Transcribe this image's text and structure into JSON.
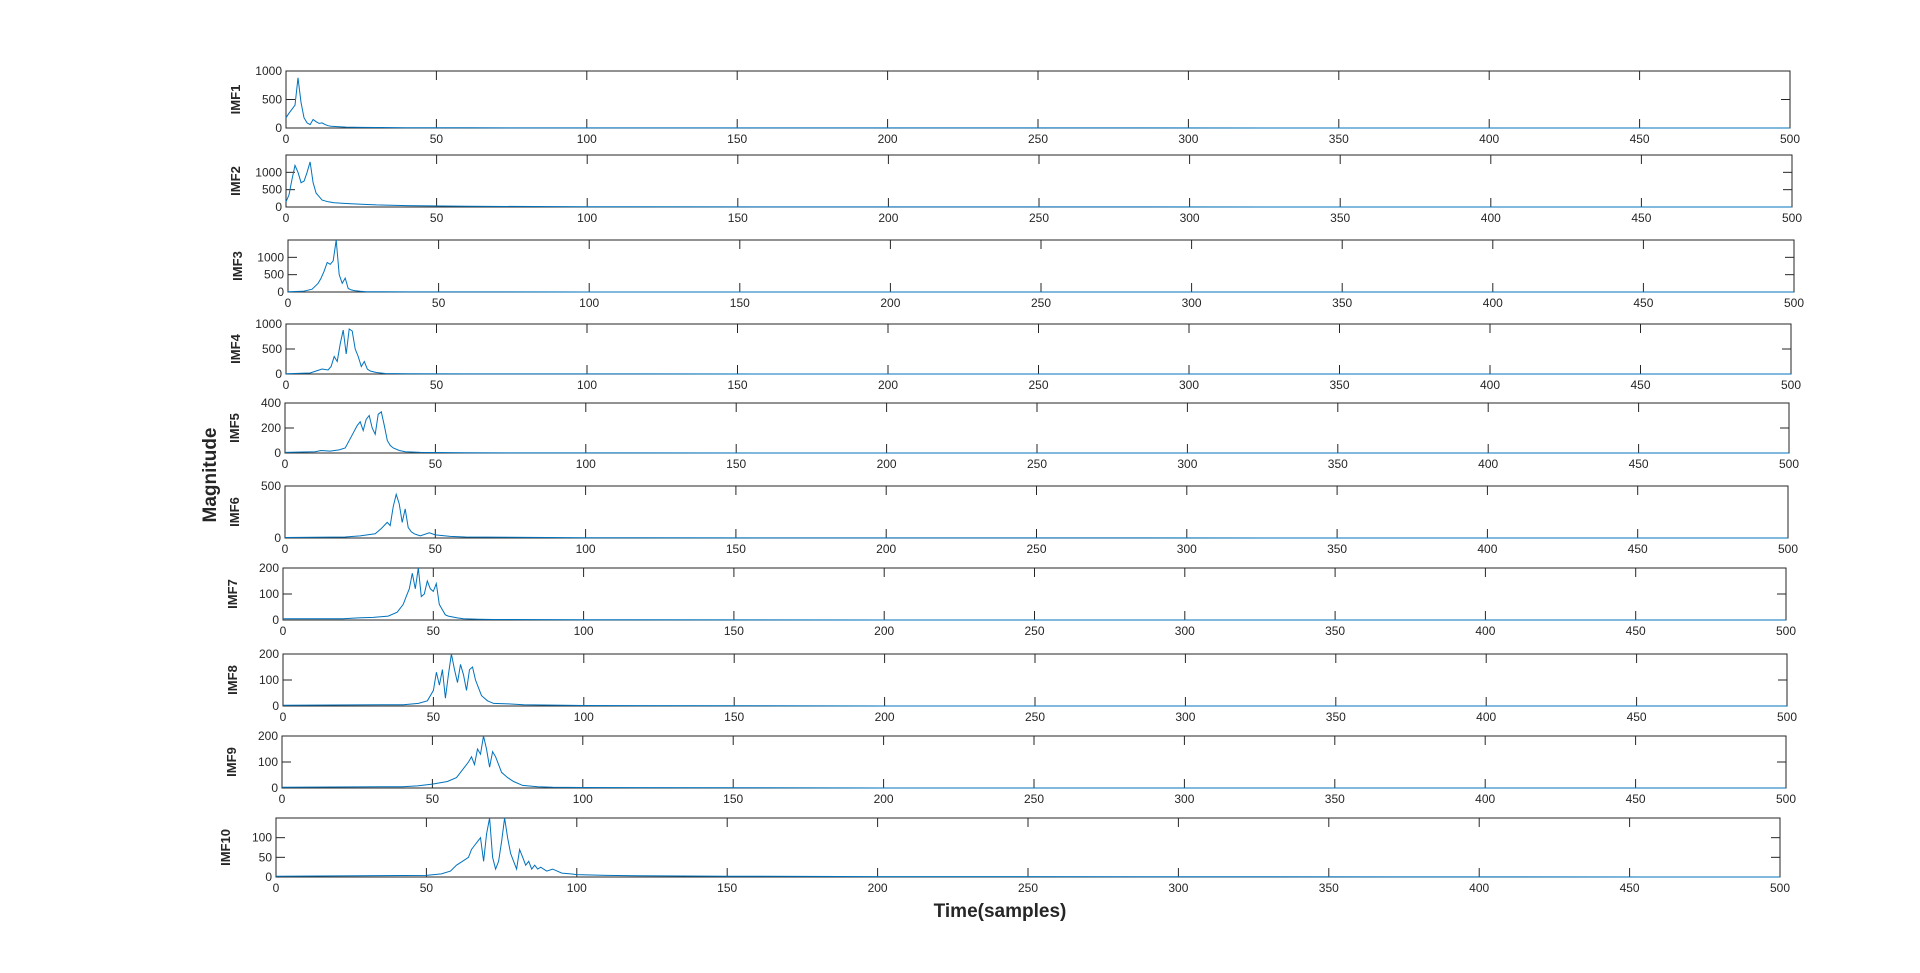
{
  "figure": {
    "ylabel": "Magnitude",
    "xlabel": "Time(samples)",
    "line_color": "#0072BD",
    "axes_color": "#262626"
  },
  "chart_data": [
    {
      "type": "line",
      "ylabel": "IMF1",
      "xlim": [
        0,
        500
      ],
      "ylim": [
        0,
        1000
      ],
      "xticks": [
        0,
        50,
        100,
        150,
        200,
        250,
        300,
        350,
        400,
        450,
        500
      ],
      "yticks": [
        0,
        500,
        1000
      ],
      "grid": false,
      "series": [
        {
          "x": [
            0,
            1,
            2,
            3,
            4,
            5,
            6,
            7,
            8,
            9,
            10,
            11,
            12,
            13,
            14,
            15,
            17,
            20,
            25,
            30,
            40,
            60,
            100,
            200,
            500
          ],
          "y": [
            180,
            260,
            330,
            400,
            880,
            450,
            180,
            90,
            60,
            150,
            110,
            80,
            90,
            60,
            40,
            30,
            25,
            15,
            10,
            8,
            5,
            3,
            2,
            1,
            0
          ]
        }
      ]
    },
    {
      "type": "line",
      "ylabel": "IMF2",
      "xlim": [
        0,
        500
      ],
      "ylim": [
        0,
        1500
      ],
      "xticks": [
        0,
        50,
        100,
        150,
        200,
        250,
        300,
        350,
        400,
        450,
        500
      ],
      "yticks": [
        0,
        500,
        1000
      ],
      "grid": false,
      "series": [
        {
          "x": [
            0,
            1,
            2,
            3,
            4,
            5,
            6,
            7,
            8,
            9,
            10,
            11,
            12,
            14,
            16,
            20,
            25,
            30,
            40,
            60,
            100,
            200,
            500
          ],
          "y": [
            150,
            350,
            800,
            1200,
            1000,
            700,
            750,
            1000,
            1300,
            700,
            400,
            300,
            200,
            150,
            120,
            100,
            80,
            60,
            40,
            20,
            10,
            3,
            0
          ]
        }
      ]
    },
    {
      "type": "line",
      "ylabel": "IMF3",
      "xlim": [
        0,
        500
      ],
      "ylim": [
        0,
        1500
      ],
      "xticks": [
        0,
        50,
        100,
        150,
        200,
        250,
        300,
        350,
        400,
        450,
        500
      ],
      "yticks": [
        0,
        500,
        1000
      ],
      "grid": false,
      "series": [
        {
          "x": [
            0,
            5,
            8,
            10,
            11,
            12,
            13,
            14,
            15,
            16,
            17,
            18,
            19,
            20,
            21,
            22,
            24,
            26,
            30,
            40,
            60,
            100,
            200,
            500
          ],
          "y": [
            10,
            20,
            80,
            250,
            400,
            600,
            850,
            800,
            900,
            1500,
            500,
            250,
            400,
            100,
            60,
            40,
            20,
            10,
            5,
            3,
            2,
            1,
            0,
            0
          ]
        }
      ]
    },
    {
      "type": "line",
      "ylabel": "IMF4",
      "xlim": [
        0,
        500
      ],
      "ylim": [
        0,
        1000
      ],
      "xticks": [
        0,
        50,
        100,
        150,
        200,
        250,
        300,
        350,
        400,
        450,
        500
      ],
      "yticks": [
        0,
        500,
        1000
      ],
      "grid": false,
      "series": [
        {
          "x": [
            0,
            8,
            10,
            12,
            14,
            15,
            16,
            17,
            18,
            19,
            20,
            21,
            22,
            23,
            24,
            25,
            26,
            27,
            28,
            30,
            33,
            40,
            60,
            100,
            200,
            500
          ],
          "y": [
            5,
            20,
            60,
            100,
            80,
            150,
            350,
            250,
            600,
            880,
            400,
            900,
            860,
            500,
            350,
            150,
            250,
            100,
            60,
            30,
            10,
            5,
            2,
            1,
            0,
            0
          ]
        }
      ]
    },
    {
      "type": "line",
      "ylabel": "IMF5",
      "xlim": [
        0,
        500
      ],
      "ylim": [
        0,
        400
      ],
      "xticks": [
        0,
        50,
        100,
        150,
        200,
        250,
        300,
        350,
        400,
        450,
        500
      ],
      "yticks": [
        0,
        200,
        400
      ],
      "grid": false,
      "series": [
        {
          "x": [
            0,
            10,
            12,
            15,
            18,
            20,
            22,
            24,
            25,
            26,
            27,
            28,
            29,
            30,
            31,
            32,
            33,
            34,
            35,
            36,
            38,
            40,
            45,
            60,
            100,
            200,
            500
          ],
          "y": [
            5,
            10,
            20,
            15,
            25,
            40,
            130,
            220,
            250,
            180,
            270,
            300,
            200,
            150,
            310,
            330,
            220,
            100,
            60,
            40,
            20,
            10,
            5,
            2,
            1,
            0,
            0
          ]
        }
      ]
    },
    {
      "type": "line",
      "ylabel": "IMF6",
      "xlim": [
        0,
        500
      ],
      "ylim": [
        0,
        500
      ],
      "xticks": [
        0,
        50,
        100,
        150,
        200,
        250,
        300,
        350,
        400,
        450,
        500
      ],
      "yticks": [
        0,
        500
      ],
      "grid": false,
      "series": [
        {
          "x": [
            0,
            20,
            25,
            30,
            32,
            34,
            35,
            36,
            37,
            38,
            39,
            40,
            41,
            42,
            43,
            44,
            45,
            48,
            50,
            55,
            60,
            100,
            200,
            500
          ],
          "y": [
            5,
            10,
            20,
            40,
            90,
            150,
            120,
            300,
            420,
            330,
            150,
            280,
            100,
            60,
            40,
            30,
            20,
            50,
            30,
            15,
            10,
            3,
            1,
            0
          ]
        }
      ]
    },
    {
      "type": "line",
      "ylabel": "IMF7",
      "xlim": [
        0,
        500
      ],
      "ylim": [
        0,
        200
      ],
      "xticks": [
        0,
        50,
        100,
        150,
        200,
        250,
        300,
        350,
        400,
        450,
        500
      ],
      "yticks": [
        0,
        100,
        200
      ],
      "grid": false,
      "series": [
        {
          "x": [
            0,
            20,
            25,
            30,
            35,
            38,
            40,
            41,
            42,
            43,
            44,
            45,
            46,
            47,
            48,
            49,
            50,
            51,
            52,
            53,
            54,
            55,
            58,
            60,
            65,
            70,
            100,
            200,
            500
          ],
          "y": [
            5,
            5,
            8,
            10,
            15,
            30,
            60,
            90,
            120,
            180,
            120,
            200,
            90,
            100,
            150,
            120,
            110,
            140,
            60,
            40,
            20,
            15,
            8,
            5,
            3,
            2,
            1,
            0,
            0
          ]
        }
      ]
    },
    {
      "type": "line",
      "ylabel": "IMF8",
      "xlim": [
        0,
        500
      ],
      "ylim": [
        0,
        200
      ],
      "xticks": [
        0,
        50,
        100,
        150,
        200,
        250,
        300,
        350,
        400,
        450,
        500
      ],
      "yticks": [
        0,
        100,
        200
      ],
      "grid": false,
      "series": [
        {
          "x": [
            0,
            40,
            45,
            48,
            50,
            51,
            52,
            53,
            54,
            55,
            56,
            57,
            58,
            59,
            60,
            61,
            62,
            63,
            64,
            65,
            66,
            67,
            68,
            70,
            75,
            80,
            100,
            200,
            500
          ],
          "y": [
            3,
            5,
            10,
            20,
            60,
            130,
            80,
            140,
            30,
            120,
            210,
            140,
            90,
            160,
            120,
            60,
            140,
            150,
            100,
            70,
            40,
            30,
            20,
            10,
            8,
            5,
            2,
            0,
            0
          ]
        }
      ]
    },
    {
      "type": "line",
      "ylabel": "IMF9",
      "xlim": [
        0,
        500
      ],
      "ylim": [
        0,
        200
      ],
      "xticks": [
        0,
        50,
        100,
        150,
        200,
        250,
        300,
        350,
        400,
        450,
        500
      ],
      "yticks": [
        0,
        100,
        200
      ],
      "grid": false,
      "series": [
        {
          "x": [
            0,
            40,
            45,
            50,
            55,
            58,
            60,
            62,
            63,
            64,
            65,
            66,
            67,
            68,
            69,
            70,
            71,
            72,
            73,
            74,
            75,
            77,
            80,
            85,
            90,
            100,
            200,
            500
          ],
          "y": [
            3,
            5,
            8,
            15,
            25,
            40,
            70,
            100,
            120,
            90,
            150,
            130,
            200,
            150,
            80,
            140,
            120,
            90,
            60,
            50,
            40,
            25,
            10,
            5,
            3,
            2,
            0,
            0
          ]
        }
      ]
    },
    {
      "type": "line",
      "ylabel": "IMF10",
      "xlim": [
        0,
        500
      ],
      "ylim": [
        0,
        150
      ],
      "xticks": [
        0,
        50,
        100,
        150,
        200,
        250,
        300,
        350,
        400,
        450,
        500
      ],
      "yticks": [
        0,
        50,
        100
      ],
      "grid": false,
      "series": [
        {
          "x": [
            0,
            50,
            55,
            58,
            60,
            62,
            64,
            65,
            66,
            67,
            68,
            69,
            70,
            71,
            72,
            73,
            74,
            75,
            76,
            77,
            78,
            79,
            80,
            81,
            82,
            83,
            84,
            85,
            86,
            87,
            88,
            90,
            92,
            95,
            98,
            100,
            105,
            110,
            120,
            150,
            200,
            500
          ],
          "y": [
            2,
            4,
            8,
            15,
            30,
            40,
            50,
            70,
            80,
            90,
            100,
            40,
            110,
            150,
            50,
            20,
            40,
            90,
            150,
            100,
            60,
            40,
            20,
            70,
            50,
            30,
            40,
            20,
            30,
            20,
            25,
            15,
            20,
            10,
            8,
            6,
            5,
            4,
            3,
            2,
            1,
            0
          ]
        }
      ]
    }
  ]
}
